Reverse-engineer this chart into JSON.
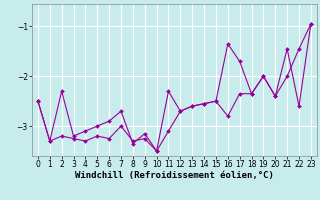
{
  "xlabel": "Windchill (Refroidissement éolien,°C)",
  "background_color": "#c8ecec",
  "line_color": "#990099",
  "grid_color": "#ffffff",
  "ylim": [
    -3.6,
    -0.55
  ],
  "xlim": [
    -0.5,
    23.5
  ],
  "yticks": [
    -3,
    -2,
    -1
  ],
  "xticks": [
    0,
    1,
    2,
    3,
    4,
    5,
    6,
    7,
    8,
    9,
    10,
    11,
    12,
    13,
    14,
    15,
    16,
    17,
    18,
    19,
    20,
    21,
    22,
    23
  ],
  "series1_x": [
    0,
    1,
    2,
    3,
    4,
    5,
    6,
    7,
    8,
    9,
    10,
    11,
    12,
    13,
    14,
    15,
    16,
    17,
    18,
    19,
    20,
    21,
    22,
    23
  ],
  "series1_y": [
    -2.5,
    -3.3,
    -2.3,
    -3.2,
    -3.1,
    -3.0,
    -2.9,
    -2.7,
    -3.35,
    -3.15,
    -3.5,
    -3.1,
    -2.7,
    -2.6,
    -2.55,
    -2.5,
    -2.8,
    -2.35,
    -2.35,
    -2.0,
    -2.4,
    -1.45,
    -2.6,
    -0.95
  ],
  "series2_x": [
    0,
    1,
    2,
    3,
    4,
    5,
    6,
    7,
    8,
    9,
    10,
    11,
    12,
    13,
    14,
    15,
    16,
    17,
    18,
    19,
    20,
    21,
    22,
    23
  ],
  "series2_y": [
    -2.5,
    -3.3,
    -3.2,
    -3.25,
    -3.3,
    -3.2,
    -3.25,
    -3.0,
    -3.3,
    -3.25,
    -3.5,
    -2.3,
    -2.7,
    -2.6,
    -2.55,
    -2.5,
    -1.35,
    -1.7,
    -2.35,
    -2.0,
    -2.4,
    -2.0,
    -1.45,
    -0.95
  ],
  "marker": "D",
  "marker_size": 2.0,
  "line_width": 0.8,
  "tick_fontsize": 5.5,
  "label_fontsize": 6.5
}
